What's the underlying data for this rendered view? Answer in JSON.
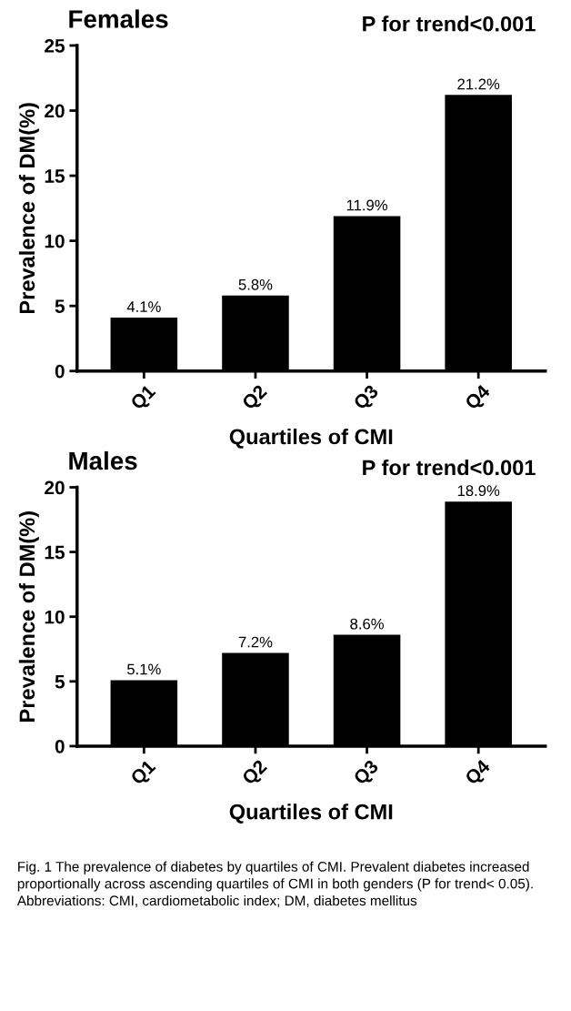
{
  "chart_data": [
    {
      "type": "bar",
      "title": "Females",
      "ylabel": "Prevalence of DM(%)",
      "xlabel": "Quartiles of CMI",
      "categories": [
        "Q1",
        "Q2",
        "Q3",
        "Q4"
      ],
      "values": [
        4.1,
        5.8,
        11.9,
        21.2
      ],
      "value_labels": [
        "4.1%",
        "5.8%",
        "11.9%",
        "21.2%"
      ],
      "color": "#000000",
      "ylim": [
        0,
        25
      ],
      "yticks": [
        0,
        5,
        10,
        15,
        20,
        25
      ],
      "grid": false,
      "legend": false,
      "annotations": [
        "P for trend<0.001"
      ]
    },
    {
      "type": "bar",
      "title": "Males",
      "ylabel": "Prevalence of DM(%)",
      "xlabel": "Quartiles of CMI",
      "categories": [
        "Q1",
        "Q2",
        "Q3",
        "Q4"
      ],
      "values": [
        5.1,
        7.2,
        8.6,
        18.9
      ],
      "value_labels": [
        "5.1%",
        "7.2%",
        "8.6%",
        "18.9%"
      ],
      "color": "#000000",
      "ylim": [
        0,
        20
      ],
      "yticks": [
        0,
        5,
        10,
        15,
        20
      ],
      "grid": false,
      "legend": false,
      "annotations": [
        "P for trend<0.001",
        "Fig. 1 The prevalence of diabetes by quartiles of CMI. Prevalent diabetes increased proportionally across ascending quartiles of CMI in both genders (P for trend< 0.05). Abbreviations: CMI, cardiometabolic index; DM, diabetes mellitus"
      ]
    }
  ]
}
